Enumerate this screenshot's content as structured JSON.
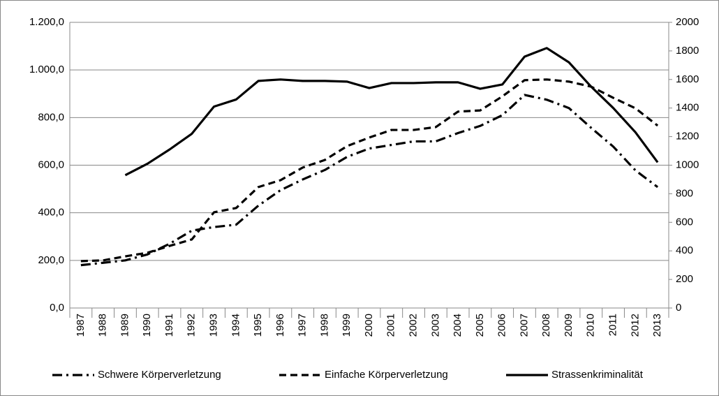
{
  "chart_data": {
    "type": "line",
    "categories": [
      "1987",
      "1988",
      "1989",
      "1990",
      "1991",
      "1992",
      "1993",
      "1994",
      "1995",
      "1996",
      "1997",
      "1998",
      "1999",
      "2000",
      "2001",
      "2002",
      "2003",
      "2004",
      "2005",
      "2006",
      "2007",
      "2008",
      "2009",
      "2010",
      "2011",
      "2012",
      "2013"
    ],
    "series": [
      {
        "name": "Schwere Körperverletzung",
        "color": "#000000",
        "style": "dashdot",
        "axis": "y",
        "values": [
          180,
          190,
          200,
          225,
          270,
          325,
          340,
          350,
          430,
          495,
          540,
          580,
          635,
          670,
          685,
          700,
          700,
          735,
          765,
          810,
          895,
          875,
          840,
          757,
          678,
          578,
          508
        ]
      },
      {
        "name": "Einfache Körperverletzung",
        "color": "#000000",
        "style": "dashed",
        "axis": "y",
        "values": [
          197,
          200,
          217,
          232,
          261,
          288,
          402,
          420,
          508,
          537,
          590,
          622,
          680,
          716,
          748,
          748,
          760,
          825,
          830,
          889,
          957,
          960,
          951,
          930,
          883,
          839,
          766
        ]
      },
      {
        "name": "Strassenkriminalität",
        "color": "#000000",
        "style": "solid",
        "axis": "y2",
        "values": [
          null,
          null,
          930,
          1010,
          1110,
          1220,
          1410,
          1460,
          1590,
          1600,
          1590,
          1590,
          1585,
          1540,
          1575,
          1575,
          1580,
          1580,
          1535,
          1565,
          1760,
          1820,
          1720,
          1550,
          1400,
          1230,
          1020
        ]
      }
    ],
    "ylim": [
      0,
      1200
    ],
    "yticks": [
      {
        "value": 0,
        "label": "0,0"
      },
      {
        "value": 200,
        "label": "200,0"
      },
      {
        "value": 400,
        "label": "400,0"
      },
      {
        "value": 600,
        "label": "600,0"
      },
      {
        "value": 800,
        "label": "800,0"
      },
      {
        "value": 1000,
        "label": "1.000,0"
      },
      {
        "value": 1200,
        "label": "1.200,0"
      }
    ],
    "y2lim": [
      0,
      2000
    ],
    "y2ticks": [
      0,
      200,
      400,
      600,
      800,
      1000,
      1200,
      1400,
      1600,
      1800,
      2000
    ],
    "grid": true,
    "legend": "bottom"
  }
}
